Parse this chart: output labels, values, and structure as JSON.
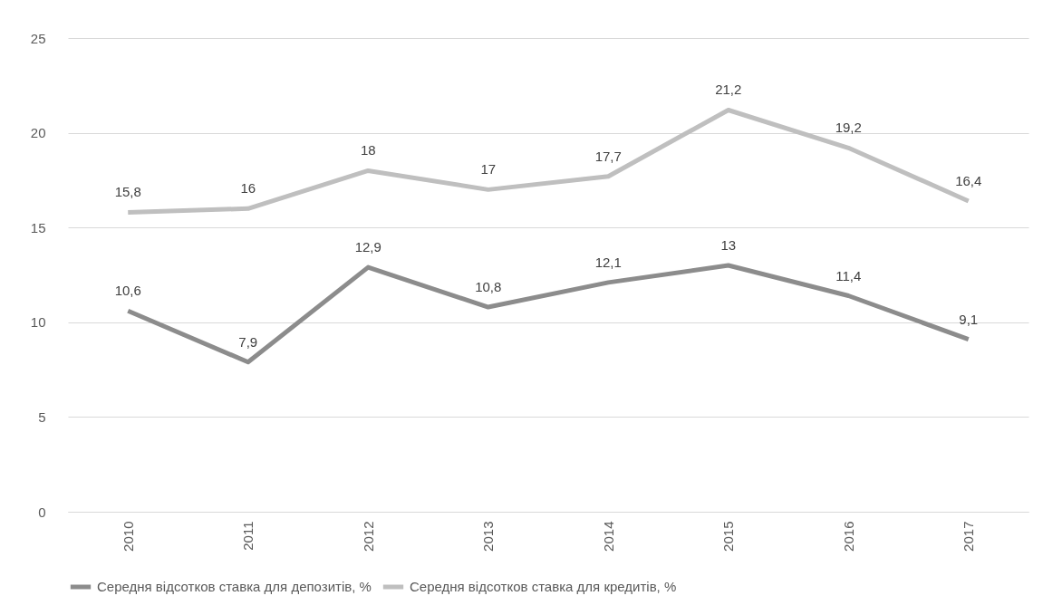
{
  "chart_data": {
    "type": "line",
    "categories": [
      "2010",
      "2011",
      "2012",
      "2013",
      "2014",
      "2015",
      "2016",
      "2017"
    ],
    "series": [
      {
        "name": "Середня відсотков ставка для депозитів, %",
        "color": "#8c8c8c",
        "values": [
          10.6,
          7.9,
          12.9,
          10.8,
          12.1,
          13,
          11.4,
          9.1
        ],
        "value_labels": [
          "10,6",
          "7,9",
          "12,9",
          "10,8",
          "12,1",
          "13",
          "11,4",
          "9,1"
        ]
      },
      {
        "name": "Середня відсотков ставка для кредитів, %",
        "color": "#bfbfbf",
        "values": [
          15.8,
          16,
          18,
          17,
          17.7,
          21.2,
          19.2,
          16.4
        ],
        "value_labels": [
          "15,8",
          "16",
          "18",
          "17",
          "17,7",
          "21,2",
          "19,2",
          "16,4"
        ]
      }
    ],
    "ylim": [
      0,
      25
    ],
    "yticks": [
      0,
      5,
      10,
      15,
      20,
      25
    ],
    "grid": "y",
    "legend": "bottom",
    "marker": "none",
    "line_style": "solid"
  }
}
